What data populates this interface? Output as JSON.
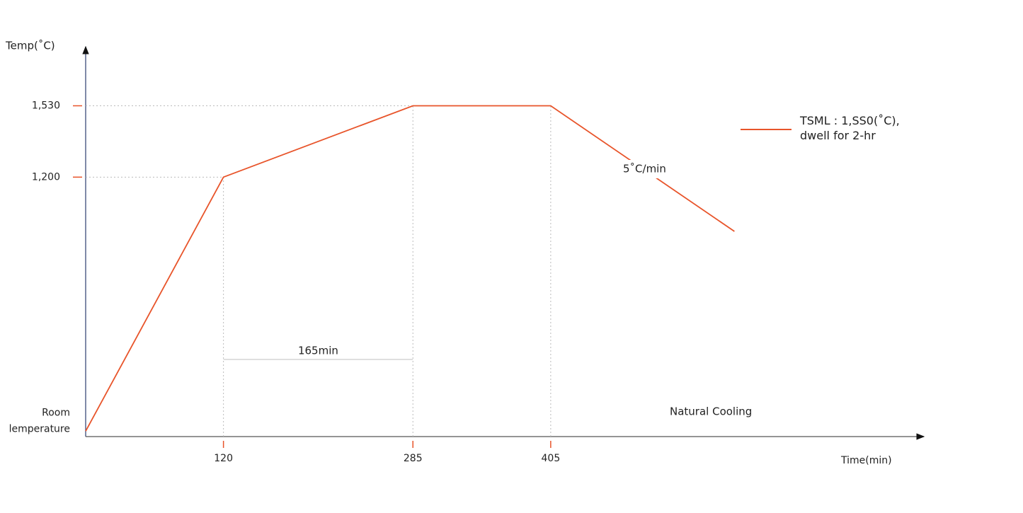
{
  "chart_data": {
    "type": "line",
    "y_label": "Temp(˚C)",
    "x_label": "Time(min)",
    "x": [
      0,
      120,
      285,
      405,
      565
    ],
    "series": [
      {
        "name": "TSML : 1,SS0(˚C),\ndwell for 2-hr",
        "color": "#e8542a",
        "values": [
          25,
          1200,
          1530,
          1530,
          949
        ]
      }
    ],
    "xlim": [
      0,
      730
    ],
    "ylim": [
      0,
      1800
    ],
    "xticks": [
      120,
      285,
      405
    ],
    "yticks": [
      {
        "value": 25,
        "label": "Room\nlemperature"
      },
      {
        "value": 1200,
        "label": "1,200"
      },
      {
        "value": 1530,
        "label": "1,530"
      }
    ],
    "annotations": {
      "interval": "165min",
      "rate": "5˚C/min",
      "cooling": "Natural Cooling"
    },
    "grid": true
  }
}
